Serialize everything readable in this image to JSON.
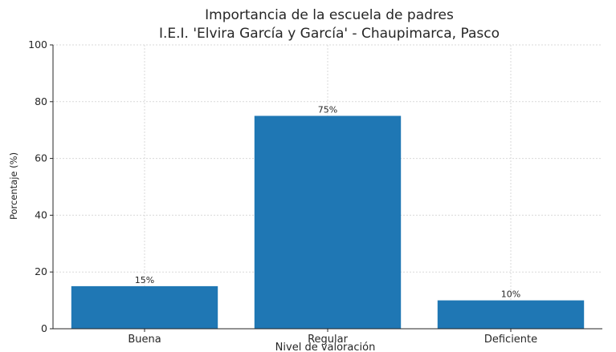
{
  "chart_data": {
    "type": "bar",
    "title": "Importancia de la escuela de padres",
    "subtitle": "I.E.I. 'Elvira García y García' - Chaupimarca, Pasco",
    "xlabel": "Nivel de valoración",
    "ylabel": "Porcentaje (%)",
    "categories": [
      "Buena",
      "Regular",
      "Deficiente"
    ],
    "values": [
      15,
      75,
      10
    ],
    "data_labels": [
      "15%",
      "75%",
      "10%"
    ],
    "ylim": [
      0,
      100
    ],
    "yticks": [
      0,
      20,
      40,
      60,
      80,
      100
    ],
    "grid": true,
    "bar_color": "#1f77b4"
  }
}
